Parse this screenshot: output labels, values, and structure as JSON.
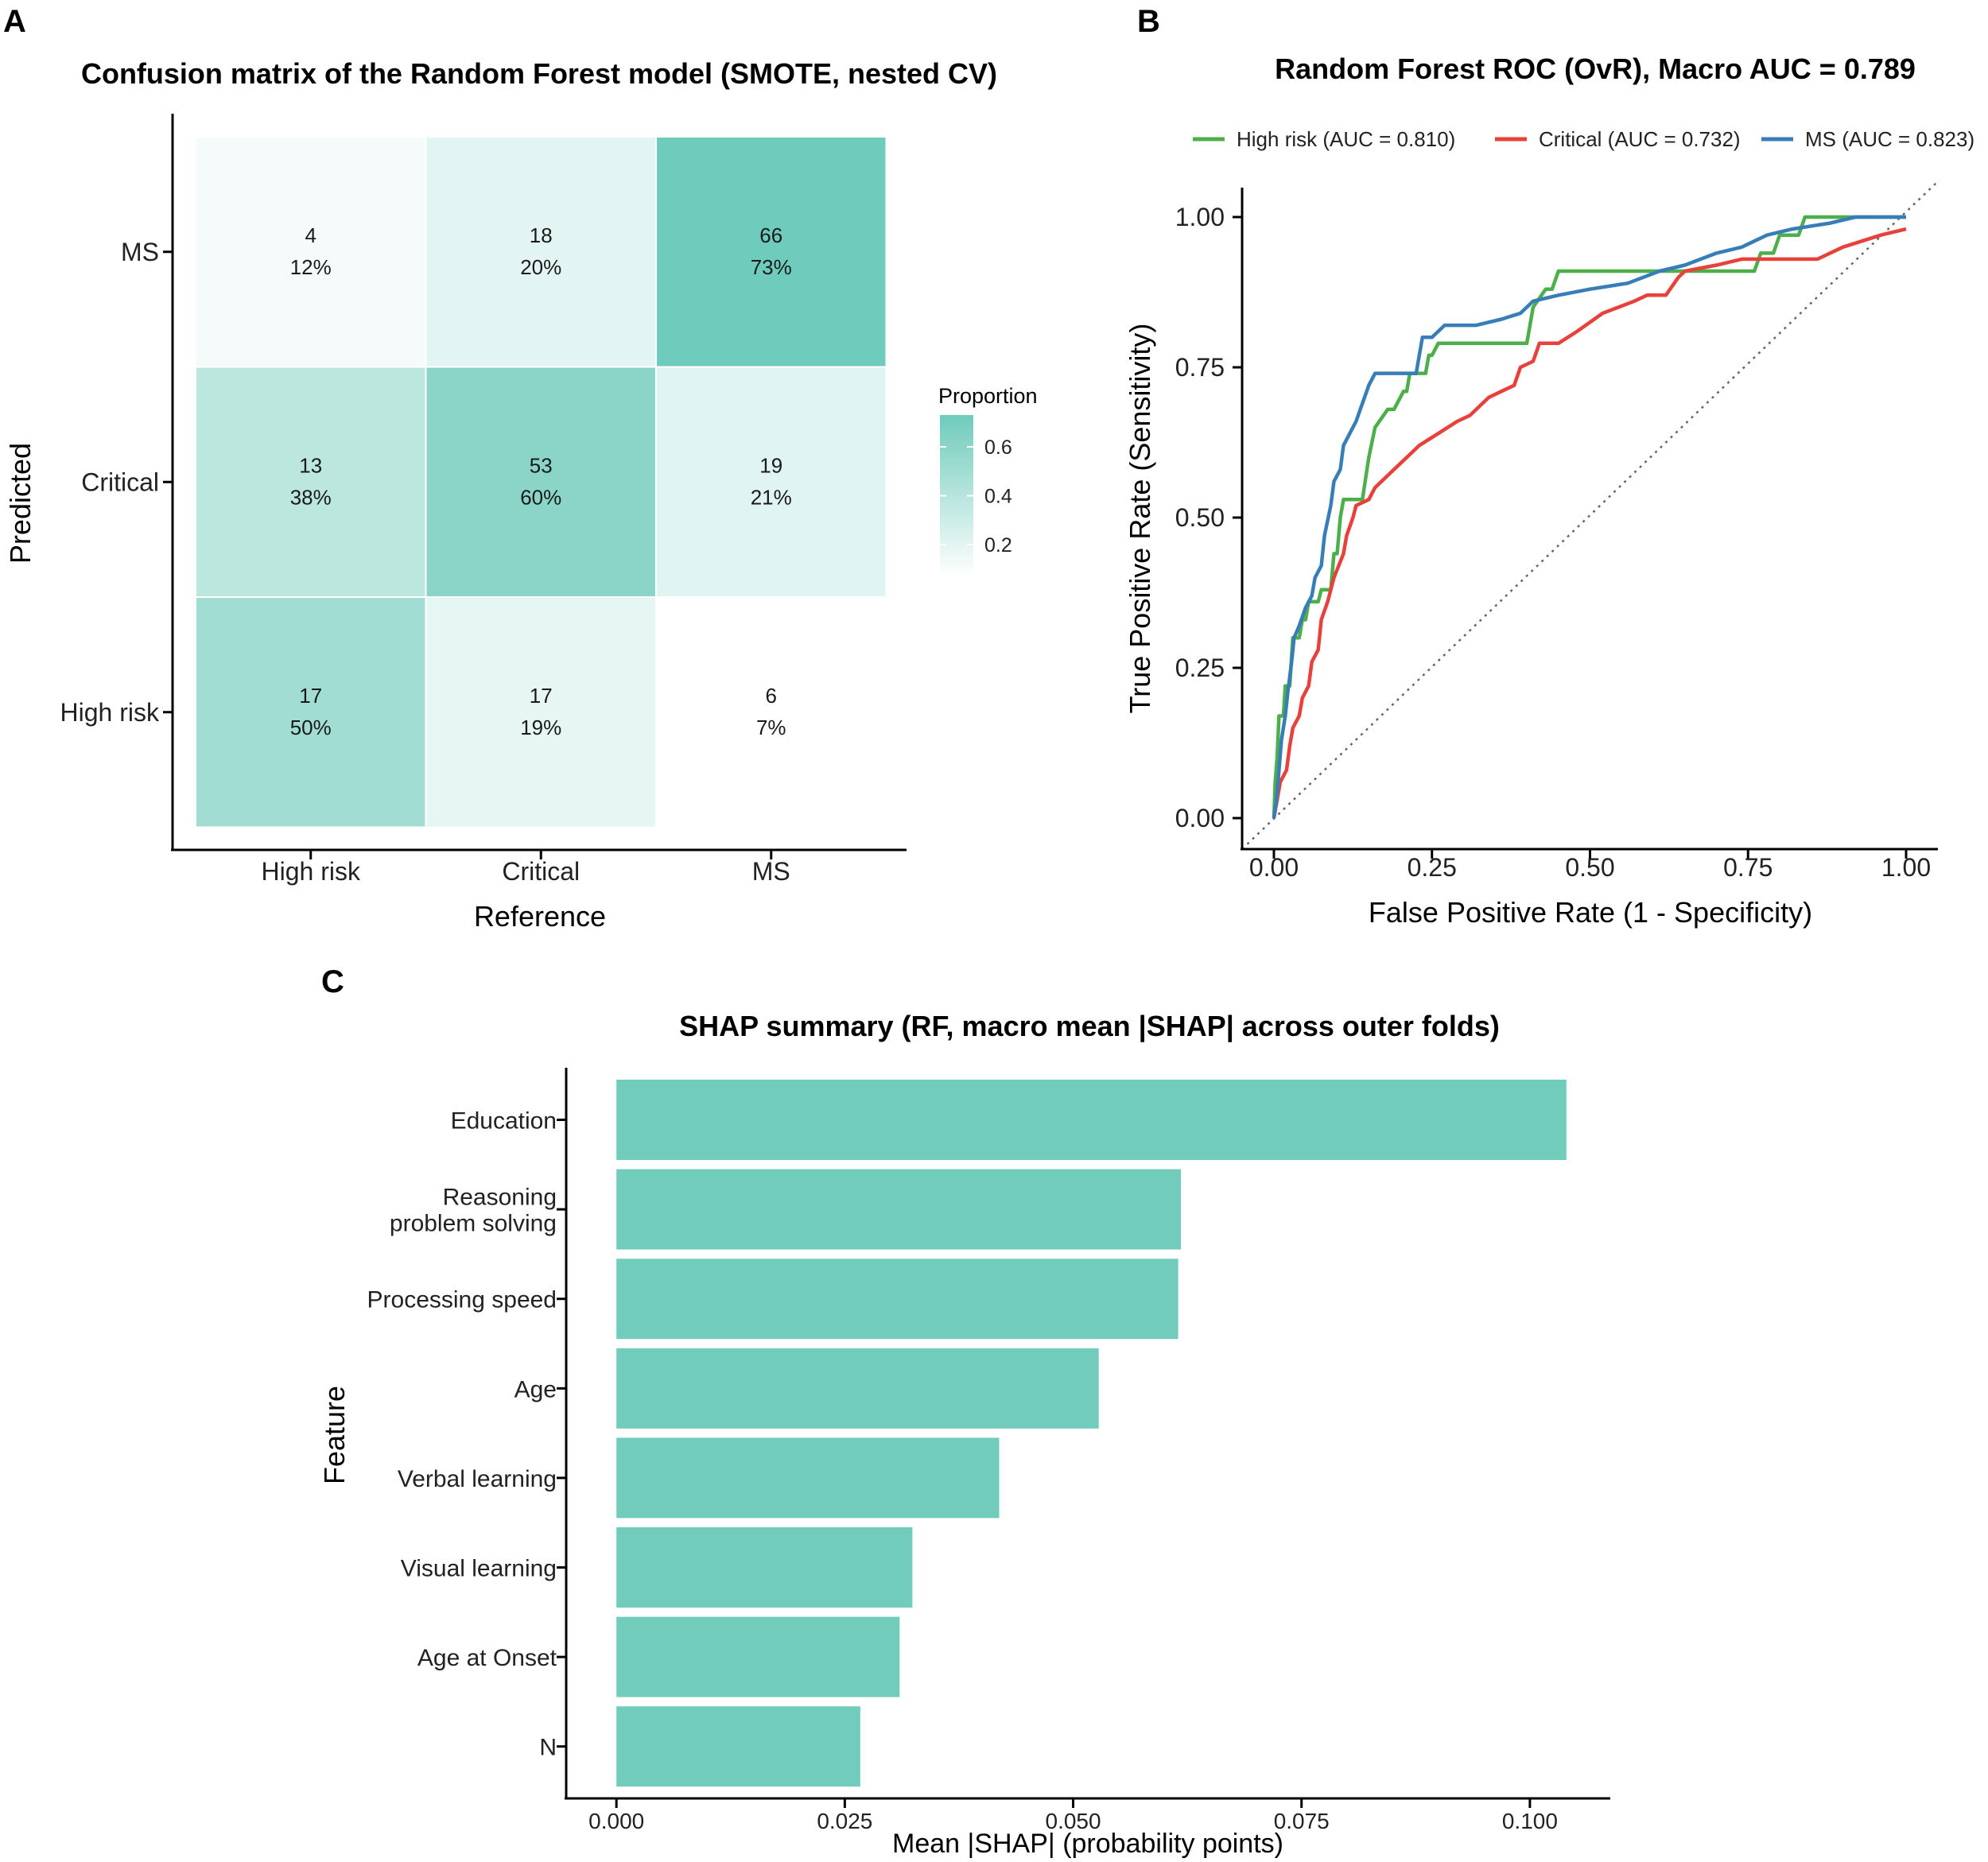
{
  "chart_data": [
    {
      "type": "heatmap",
      "panel_label": "A",
      "title": "Confusion matrix of the Random Forest model (SMOTE, nested CV)",
      "xlabel": "Reference",
      "ylabel": "Predicted",
      "x_categories": [
        "High risk",
        "Critical",
        "MS"
      ],
      "y_categories": [
        "MS",
        "Critical",
        "High risk"
      ],
      "cells": [
        {
          "reference": "High risk",
          "predicted": "MS",
          "count": "4",
          "percent": "12%",
          "proportion": 0.12
        },
        {
          "reference": "Critical",
          "predicted": "MS",
          "count": "18",
          "percent": "20%",
          "proportion": 0.2
        },
        {
          "reference": "MS",
          "predicted": "MS",
          "count": "66",
          "percent": "73%",
          "proportion": 0.73
        },
        {
          "reference": "High risk",
          "predicted": "Critical",
          "count": "13",
          "percent": "38%",
          "proportion": 0.38
        },
        {
          "reference": "Critical",
          "predicted": "Critical",
          "count": "53",
          "percent": "60%",
          "proportion": 0.6
        },
        {
          "reference": "MS",
          "predicted": "Critical",
          "count": "19",
          "percent": "21%",
          "proportion": 0.21
        },
        {
          "reference": "High risk",
          "predicted": "High risk",
          "count": "17",
          "percent": "50%",
          "proportion": 0.5
        },
        {
          "reference": "Critical",
          "predicted": "High risk",
          "count": "17",
          "percent": "19%",
          "proportion": 0.19
        },
        {
          "reference": "MS",
          "predicted": "High risk",
          "count": "6",
          "percent": "7%",
          "proportion": 0.07
        }
      ],
      "legend_title": "Proportion",
      "legend_ticks": [
        {
          "value": 0.2,
          "label": "0.2"
        },
        {
          "value": 0.4,
          "label": "0.4"
        },
        {
          "value": 0.6,
          "label": "0.6"
        }
      ],
      "color_low": "#ffffff",
      "color_high": "#6fcbbb",
      "value_range": [
        0.07,
        0.73
      ]
    },
    {
      "type": "line",
      "panel_label": "B",
      "title": "Random Forest ROC (OvR), Macro AUC = 0.789",
      "xlabel": "False Positive Rate (1 - Specificity)",
      "ylabel": "True Positive Rate (Sensitivity)",
      "xlim": [
        0,
        1
      ],
      "ylim": [
        0,
        1
      ],
      "x_ticks": [
        {
          "value": 0,
          "label": "0.00"
        },
        {
          "value": 0.25,
          "label": "0.25"
        },
        {
          "value": 0.5,
          "label": "0.50"
        },
        {
          "value": 0.75,
          "label": "0.75"
        },
        {
          "value": 1,
          "label": "1.00"
        }
      ],
      "y_ticks": [
        {
          "value": 0,
          "label": "0.00"
        },
        {
          "value": 0.25,
          "label": "0.25"
        },
        {
          "value": 0.5,
          "label": "0.50"
        },
        {
          "value": 0.75,
          "label": "0.75"
        },
        {
          "value": 1,
          "label": "1.00"
        }
      ],
      "diagonal_reference": true,
      "legend_position": "top",
      "series": [
        {
          "name": "High risk (AUC = 0.810)",
          "color": "#4daf4a",
          "points": [
            [
              0,
              0
            ],
            [
              0.002,
              0.06
            ],
            [
              0.005,
              0.1
            ],
            [
              0.008,
              0.17
            ],
            [
              0.015,
              0.17
            ],
            [
              0.018,
              0.22
            ],
            [
              0.025,
              0.22
            ],
            [
              0.03,
              0.3
            ],
            [
              0.04,
              0.3
            ],
            [
              0.045,
              0.33
            ],
            [
              0.05,
              0.33
            ],
            [
              0.055,
              0.36
            ],
            [
              0.07,
              0.36
            ],
            [
              0.075,
              0.38
            ],
            [
              0.09,
              0.38
            ],
            [
              0.095,
              0.44
            ],
            [
              0.1,
              0.44
            ],
            [
              0.105,
              0.5
            ],
            [
              0.11,
              0.53
            ],
            [
              0.14,
              0.53
            ],
            [
              0.15,
              0.6
            ],
            [
              0.16,
              0.65
            ],
            [
              0.18,
              0.68
            ],
            [
              0.19,
              0.68
            ],
            [
              0.205,
              0.71
            ],
            [
              0.21,
              0.71
            ],
            [
              0.215,
              0.74
            ],
            [
              0.24,
              0.74
            ],
            [
              0.245,
              0.77
            ],
            [
              0.25,
              0.77
            ],
            [
              0.26,
              0.79
            ],
            [
              0.4,
              0.79
            ],
            [
              0.41,
              0.85
            ],
            [
              0.43,
              0.88
            ],
            [
              0.44,
              0.88
            ],
            [
              0.45,
              0.91
            ],
            [
              0.76,
              0.91
            ],
            [
              0.77,
              0.94
            ],
            [
              0.79,
              0.94
            ],
            [
              0.8,
              0.97
            ],
            [
              0.83,
              0.97
            ],
            [
              0.84,
              1.0
            ],
            [
              1.0,
              1.0
            ]
          ]
        },
        {
          "name": "Critical (AUC = 0.732)",
          "color": "#e8413b",
          "points": [
            [
              0,
              0
            ],
            [
              0.005,
              0.03
            ],
            [
              0.01,
              0.06
            ],
            [
              0.02,
              0.08
            ],
            [
              0.025,
              0.12
            ],
            [
              0.03,
              0.15
            ],
            [
              0.04,
              0.17
            ],
            [
              0.045,
              0.2
            ],
            [
              0.055,
              0.22
            ],
            [
              0.06,
              0.26
            ],
            [
              0.07,
              0.28
            ],
            [
              0.075,
              0.33
            ],
            [
              0.085,
              0.36
            ],
            [
              0.095,
              0.4
            ],
            [
              0.11,
              0.44
            ],
            [
              0.115,
              0.47
            ],
            [
              0.125,
              0.5
            ],
            [
              0.13,
              0.52
            ],
            [
              0.15,
              0.53
            ],
            [
              0.16,
              0.55
            ],
            [
              0.17,
              0.56
            ],
            [
              0.19,
              0.58
            ],
            [
              0.21,
              0.6
            ],
            [
              0.23,
              0.62
            ],
            [
              0.26,
              0.64
            ],
            [
              0.29,
              0.66
            ],
            [
              0.31,
              0.67
            ],
            [
              0.33,
              0.69
            ],
            [
              0.34,
              0.7
            ],
            [
              0.36,
              0.71
            ],
            [
              0.38,
              0.72
            ],
            [
              0.39,
              0.75
            ],
            [
              0.41,
              0.76
            ],
            [
              0.42,
              0.79
            ],
            [
              0.45,
              0.79
            ],
            [
              0.48,
              0.81
            ],
            [
              0.52,
              0.84
            ],
            [
              0.57,
              0.86
            ],
            [
              0.59,
              0.87
            ],
            [
              0.62,
              0.87
            ],
            [
              0.64,
              0.9
            ],
            [
              0.65,
              0.91
            ],
            [
              0.7,
              0.92
            ],
            [
              0.74,
              0.93
            ],
            [
              0.86,
              0.93
            ],
            [
              0.9,
              0.95
            ],
            [
              0.96,
              0.97
            ],
            [
              1.0,
              0.98
            ]
          ]
        },
        {
          "name": "MS (AUC = 0.823)",
          "color": "#377eb8",
          "points": [
            [
              0,
              0
            ],
            [
              0.004,
              0.03
            ],
            [
              0.008,
              0.08
            ],
            [
              0.012,
              0.13
            ],
            [
              0.018,
              0.17
            ],
            [
              0.022,
              0.21
            ],
            [
              0.028,
              0.26
            ],
            [
              0.032,
              0.3
            ],
            [
              0.04,
              0.32
            ],
            [
              0.05,
              0.35
            ],
            [
              0.06,
              0.37
            ],
            [
              0.065,
              0.4
            ],
            [
              0.075,
              0.42
            ],
            [
              0.08,
              0.47
            ],
            [
              0.09,
              0.52
            ],
            [
              0.095,
              0.56
            ],
            [
              0.105,
              0.58
            ],
            [
              0.11,
              0.62
            ],
            [
              0.12,
              0.64
            ],
            [
              0.13,
              0.66
            ],
            [
              0.14,
              0.69
            ],
            [
              0.15,
              0.72
            ],
            [
              0.16,
              0.74
            ],
            [
              0.225,
              0.74
            ],
            [
              0.23,
              0.77
            ],
            [
              0.235,
              0.8
            ],
            [
              0.25,
              0.8
            ],
            [
              0.27,
              0.82
            ],
            [
              0.32,
              0.82
            ],
            [
              0.36,
              0.83
            ],
            [
              0.39,
              0.84
            ],
            [
              0.41,
              0.86
            ],
            [
              0.45,
              0.87
            ],
            [
              0.5,
              0.88
            ],
            [
              0.56,
              0.89
            ],
            [
              0.61,
              0.91
            ],
            [
              0.65,
              0.92
            ],
            [
              0.7,
              0.94
            ],
            [
              0.74,
              0.95
            ],
            [
              0.78,
              0.97
            ],
            [
              0.82,
              0.98
            ],
            [
              0.88,
              0.99
            ],
            [
              0.92,
              1.0
            ],
            [
              1.0,
              1.0
            ]
          ]
        }
      ]
    },
    {
      "type": "bar",
      "orientation": "horizontal",
      "panel_label": "C",
      "title": "SHAP summary (RF, macro mean |SHAP| across outer folds)",
      "xlabel": "Mean |SHAP| (probability points)",
      "ylabel": "Feature",
      "categories": [
        [
          "Education"
        ],
        [
          "Reasoning",
          "problem solving"
        ],
        [
          "Processing speed"
        ],
        [
          "Age"
        ],
        [
          "Verbal learning"
        ],
        [
          "Visual learning"
        ],
        [
          "Age at Onset"
        ],
        [
          "N"
        ]
      ],
      "values": [
        0.104,
        0.0618,
        0.0615,
        0.0528,
        0.0419,
        0.0324,
        0.031,
        0.0267
      ],
      "xlim": [
        -0.0055,
        0.1088
      ],
      "x_ticks": [
        {
          "value": 0,
          "label": "0.000"
        },
        {
          "value": 0.025,
          "label": "0.025"
        },
        {
          "value": 0.05,
          "label": "0.050"
        },
        {
          "value": 0.075,
          "label": "0.075"
        },
        {
          "value": 0.1,
          "label": "0.100"
        }
      ],
      "bar_color": "#72ccbc"
    }
  ]
}
